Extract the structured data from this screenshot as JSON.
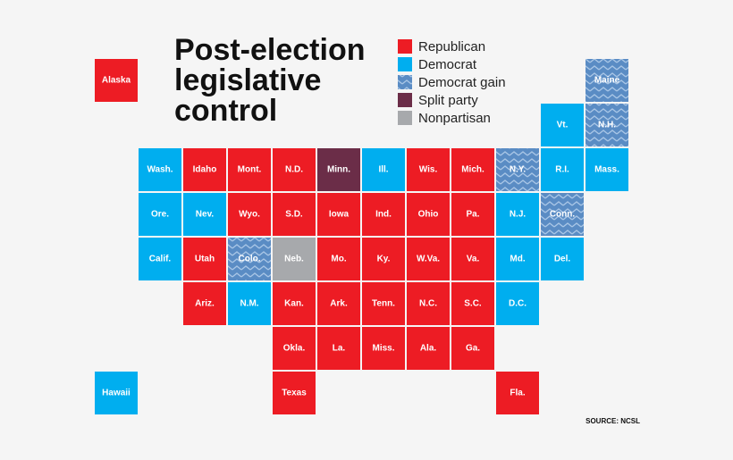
{
  "title": [
    "Post-election",
    "legislative",
    "control"
  ],
  "legend": [
    {
      "label": "Republican",
      "color": "#ed1c24"
    },
    {
      "label": "Democrat",
      "color": "#00aeef"
    },
    {
      "label": "Democrat gain",
      "color": "#5a8cc4",
      "pattern": true
    },
    {
      "label": "Split party",
      "color": "#6b2d48"
    },
    {
      "label": "Nonpartisan",
      "color": "#a7a9ac"
    }
  ],
  "tiles": [
    {
      "label": "Alaska",
      "status": "Republican"
    },
    {
      "label": "Maine",
      "status": "Democrat gain"
    },
    {
      "label": "Vt.",
      "status": "Democrat"
    },
    {
      "label": "N.H.",
      "status": "Democrat gain"
    },
    {
      "label": "Wash.",
      "status": "Democrat"
    },
    {
      "label": "Idaho",
      "status": "Republican"
    },
    {
      "label": "Mont.",
      "status": "Republican"
    },
    {
      "label": "N.D.",
      "status": "Republican"
    },
    {
      "label": "Minn.",
      "status": "Split party"
    },
    {
      "label": "Ill.",
      "status": "Democrat"
    },
    {
      "label": "Wis.",
      "status": "Republican"
    },
    {
      "label": "Mich.",
      "status": "Republican"
    },
    {
      "label": "N.Y.",
      "status": "Democrat gain"
    },
    {
      "label": "R.I.",
      "status": "Democrat"
    },
    {
      "label": "Mass.",
      "status": "Democrat"
    },
    {
      "label": "Ore.",
      "status": "Democrat"
    },
    {
      "label": "Nev.",
      "status": "Democrat"
    },
    {
      "label": "Wyo.",
      "status": "Republican"
    },
    {
      "label": "S.D.",
      "status": "Republican"
    },
    {
      "label": "Iowa",
      "status": "Republican"
    },
    {
      "label": "Ind.",
      "status": "Republican"
    },
    {
      "label": "Ohio",
      "status": "Republican"
    },
    {
      "label": "Pa.",
      "status": "Republican"
    },
    {
      "label": "N.J.",
      "status": "Democrat"
    },
    {
      "label": "Conn.",
      "status": "Democrat gain"
    },
    {
      "label": "Calif.",
      "status": "Democrat"
    },
    {
      "label": "Utah",
      "status": "Republican"
    },
    {
      "label": "Colo.",
      "status": "Democrat gain"
    },
    {
      "label": "Neb.",
      "status": "Nonpartisan"
    },
    {
      "label": "Mo.",
      "status": "Republican"
    },
    {
      "label": "Ky.",
      "status": "Republican"
    },
    {
      "label": "W.Va.",
      "status": "Republican"
    },
    {
      "label": "Va.",
      "status": "Republican"
    },
    {
      "label": "Md.",
      "status": "Democrat"
    },
    {
      "label": "Del.",
      "status": "Democrat"
    },
    {
      "label": "Ariz.",
      "status": "Republican"
    },
    {
      "label": "N.M.",
      "status": "Democrat"
    },
    {
      "label": "Kan.",
      "status": "Republican"
    },
    {
      "label": "Ark.",
      "status": "Republican"
    },
    {
      "label": "Tenn.",
      "status": "Republican"
    },
    {
      "label": "N.C.",
      "status": "Republican"
    },
    {
      "label": "S.C.",
      "status": "Republican"
    },
    {
      "label": "D.C.",
      "status": "Democrat"
    },
    {
      "label": "Okla.",
      "status": "Republican"
    },
    {
      "label": "La.",
      "status": "Republican"
    },
    {
      "label": "Miss.",
      "status": "Republican"
    },
    {
      "label": "Ala.",
      "status": "Republican"
    },
    {
      "label": "Ga.",
      "status": "Republican"
    },
    {
      "label": "Hawaii",
      "status": "Democrat"
    },
    {
      "label": "Texas",
      "status": "Republican"
    },
    {
      "label": "Fla.",
      "status": "Republican"
    }
  ],
  "source": "SOURCE: NCSL"
}
